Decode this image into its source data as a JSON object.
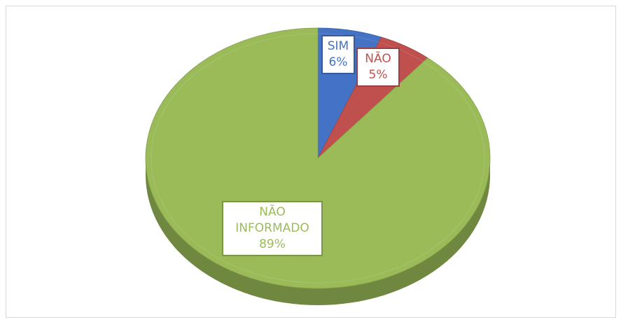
{
  "chart_data": {
    "type": "pie",
    "categories": [
      "SIM",
      "NÃO",
      "NÃO INFORMADO"
    ],
    "values": [
      6,
      5,
      89
    ],
    "value_labels": [
      "6%",
      "5%",
      "89%"
    ],
    "colors": [
      "#4472c4",
      "#c0504d",
      "#9bbb59"
    ]
  }
}
